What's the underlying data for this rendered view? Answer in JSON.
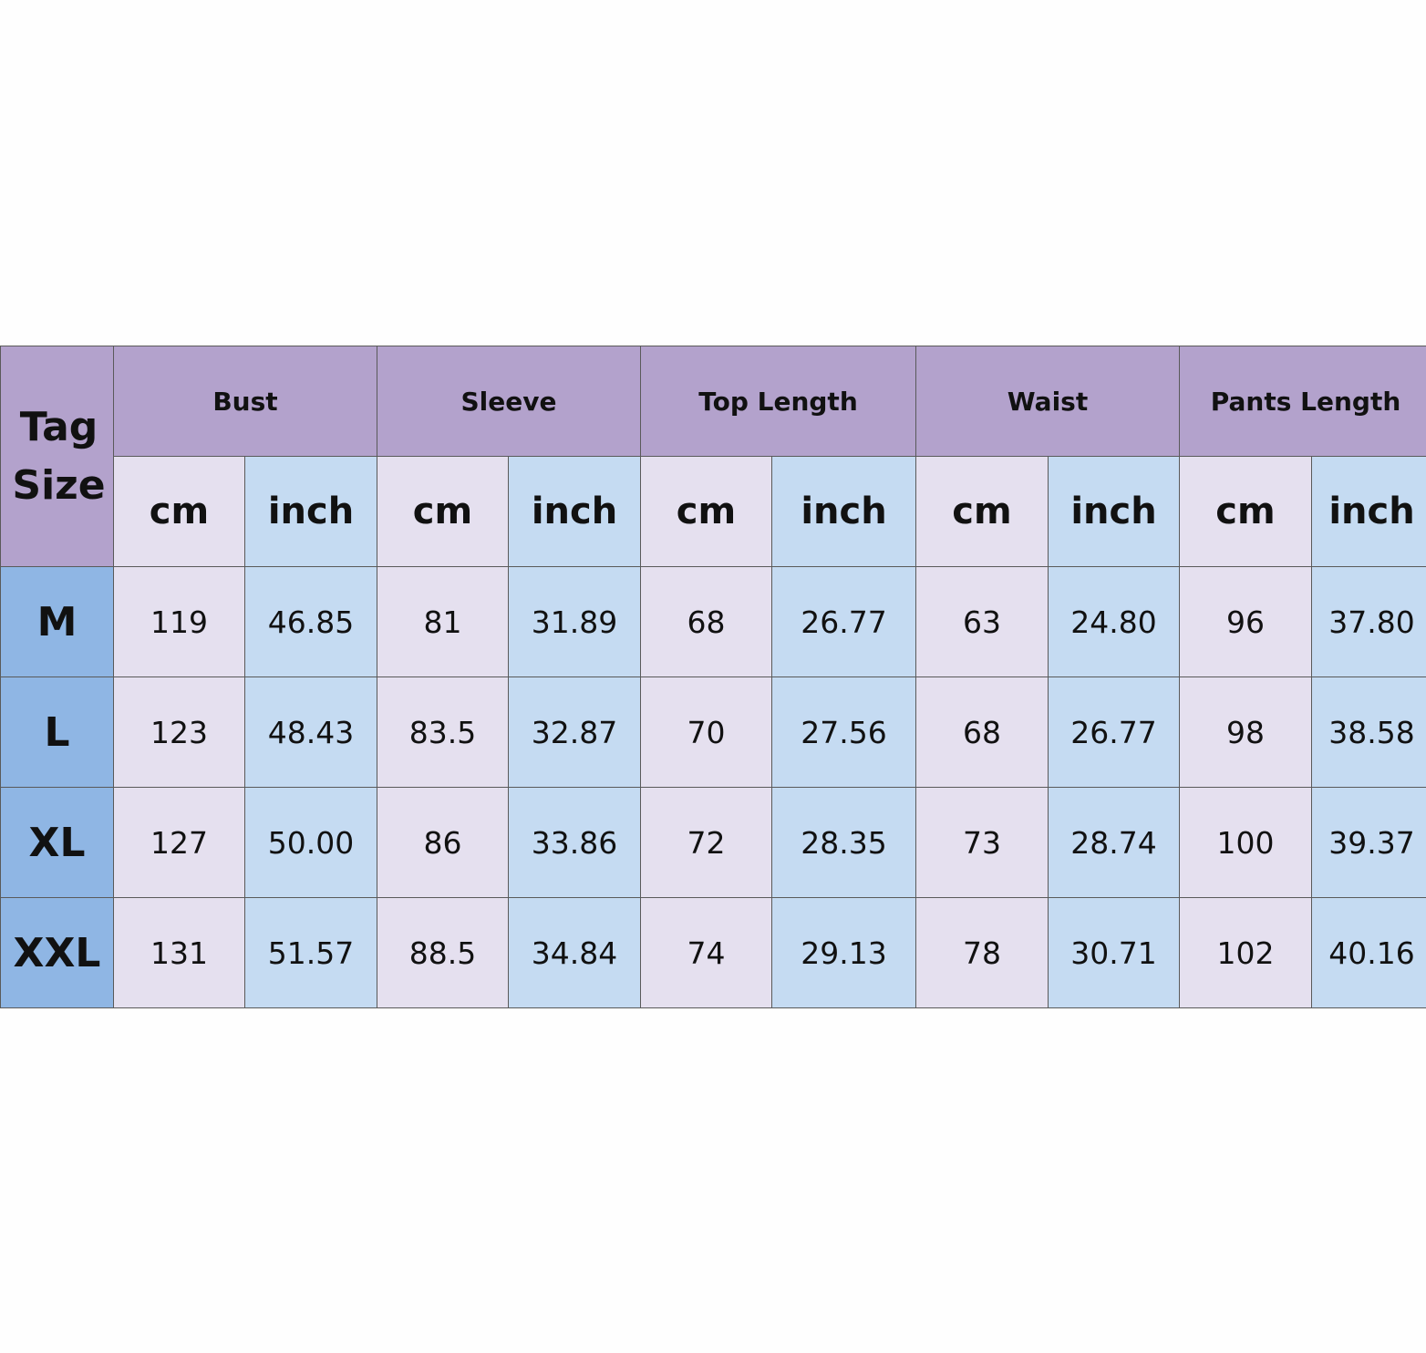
{
  "table": {
    "corner": "Tag Size",
    "groups": [
      "Bust",
      "Sleeve",
      "Top Length",
      "Waist",
      "Pants Length"
    ],
    "units": [
      "cm",
      "inch",
      "cm",
      "inch",
      "cm",
      "inch",
      "cm",
      "inch",
      "cm",
      "inch"
    ],
    "rows": [
      {
        "size": "M",
        "values": [
          "119",
          "46.85",
          "81",
          "31.89",
          "68",
          "26.77",
          "63",
          "24.80",
          "96",
          "37.80"
        ]
      },
      {
        "size": "L",
        "values": [
          "123",
          "48.43",
          "83.5",
          "32.87",
          "70",
          "27.56",
          "68",
          "26.77",
          "98",
          "38.58"
        ]
      },
      {
        "size": "XL",
        "values": [
          "127",
          "50.00",
          "86",
          "33.86",
          "72",
          "28.35",
          "73",
          "28.74",
          "100",
          "39.37"
        ]
      },
      {
        "size": "XXL",
        "values": [
          "131",
          "51.57",
          "88.5",
          "34.84",
          "74",
          "29.13",
          "78",
          "30.71",
          "102",
          "40.16"
        ]
      }
    ]
  }
}
